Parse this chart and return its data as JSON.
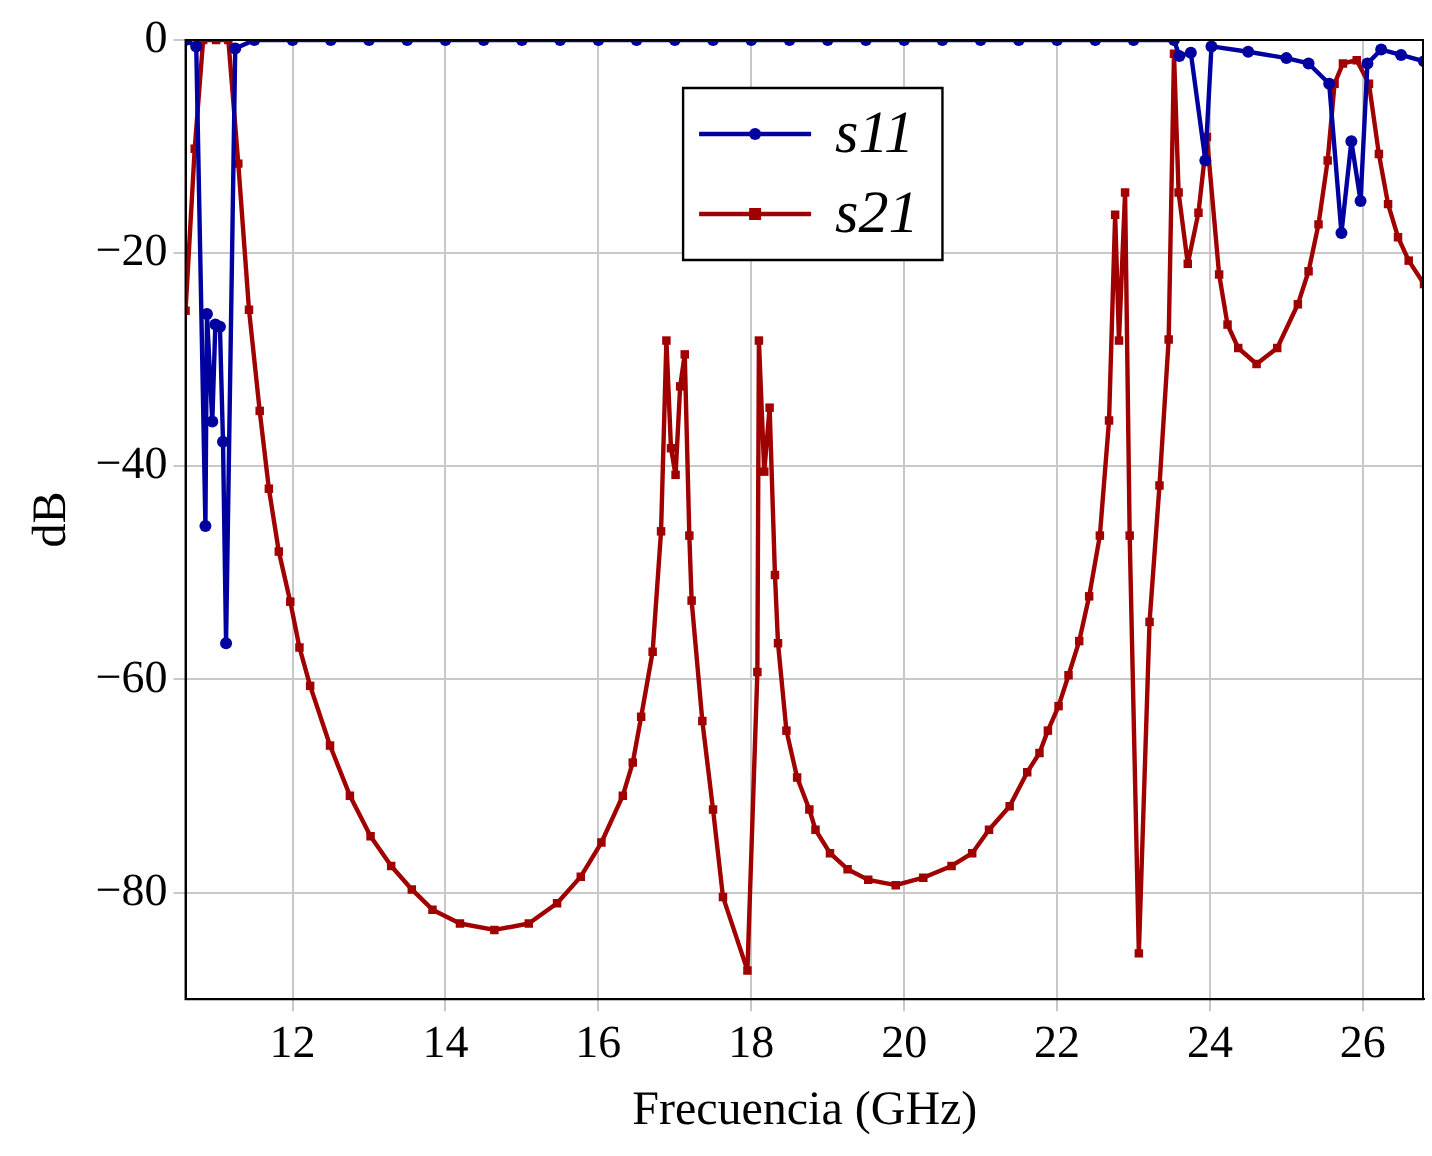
{
  "chart_data": {
    "type": "line",
    "xlabel": "Frecuencia (GHz)",
    "ylabel": "dB",
    "xlim": [
      10.6,
      26.8
    ],
    "ylim": [
      -90,
      0
    ],
    "xticks": [
      12,
      14,
      16,
      18,
      20,
      22,
      24,
      26
    ],
    "yticks": [
      {
        "value": -80,
        "label": "−80"
      },
      {
        "value": -60,
        "label": "−60"
      },
      {
        "value": -40,
        "label": "−40"
      },
      {
        "value": -20,
        "label": "−20"
      },
      0
    ],
    "grid": true,
    "legend": "top",
    "line_style": "solid",
    "series": [
      {
        "name": "s11",
        "color": "#0000a0",
        "marker": "circle",
        "x": [
          10.6,
          10.74,
          10.86,
          10.88,
          10.95,
          10.99,
          11.05,
          11.09,
          11.13,
          11.25,
          11.5,
          12,
          12.5,
          13,
          13.5,
          14,
          14.5,
          15,
          15.5,
          16,
          16.5,
          17,
          17.5,
          18,
          18.5,
          19,
          19.5,
          20,
          20.5,
          21,
          21.5,
          22,
          22.5,
          23,
          23.53,
          23.6,
          23.75,
          23.94,
          24.02,
          24.5,
          25,
          25.29,
          25.56,
          25.72,
          25.85,
          25.97,
          26.06,
          26.24,
          26.5,
          26.8
        ],
        "values": [
          0,
          -0.6,
          -45.6,
          -25.7,
          -35.8,
          -26.7,
          -26.9,
          -37.7,
          -56.6,
          -0.8,
          0,
          0,
          0,
          0,
          0,
          0,
          0,
          0,
          0,
          0,
          0,
          0,
          0,
          0,
          0,
          0,
          0,
          0,
          0,
          0,
          0,
          0,
          0,
          0,
          0,
          -1.5,
          -1.2,
          -11.3,
          -0.6,
          -1.1,
          -1.7,
          -2.2,
          -4.1,
          -18.1,
          -9.5,
          -15.1,
          -2.2,
          -0.9,
          -1.4,
          -2
        ]
      },
      {
        "name": "s21",
        "color": "#a00000",
        "marker": "square",
        "x": [
          10.6,
          10.72,
          10.83,
          11,
          11.16,
          11.29,
          11.43,
          11.57,
          11.69,
          11.82,
          11.97,
          12.09,
          12.23,
          12.49,
          12.75,
          13.02,
          13.29,
          13.56,
          13.83,
          14.19,
          14.64,
          15.09,
          15.46,
          15.77,
          16.04,
          16.32,
          16.45,
          16.56,
          16.71,
          16.82,
          16.89,
          16.95,
          17.01,
          17.07,
          17.13,
          17.19,
          17.22,
          17.36,
          17.5,
          17.63,
          17.95,
          18.08,
          18.1,
          18.17,
          18.24,
          18.31,
          18.35,
          18.46,
          18.6,
          18.76,
          18.84,
          19.03,
          19.26,
          19.53,
          19.89,
          20.25,
          20.62,
          20.89,
          21.11,
          21.38,
          21.61,
          21.77,
          21.88,
          22.02,
          22.15,
          22.29,
          22.42,
          22.56,
          22.68,
          22.76,
          22.81,
          22.89,
          22.95,
          23.07,
          23.21,
          23.34,
          23.46,
          23.53,
          23.59,
          23.71,
          23.85,
          23.96,
          24.12,
          24.23,
          24.37,
          24.61,
          24.88,
          25.15,
          25.29,
          25.42,
          25.54,
          25.63,
          25.74,
          25.92,
          26.08,
          26.21,
          26.33,
          26.46,
          26.6,
          26.8
        ],
        "values": [
          -25.4,
          -10.2,
          0,
          0,
          0,
          -11.6,
          -25.3,
          -34.8,
          -42.1,
          -48,
          -52.7,
          -57,
          -60.6,
          -66.2,
          -70.9,
          -74.7,
          -77.5,
          -79.7,
          -81.6,
          -82.9,
          -83.5,
          -82.9,
          -81,
          -78.5,
          -75.3,
          -70.9,
          -67.8,
          -63.5,
          -57.4,
          -46.1,
          -28.2,
          -38.3,
          -40.8,
          -32.5,
          -29.5,
          -46.5,
          -52.6,
          -63.9,
          -72.2,
          -80.4,
          -87.3,
          -59.3,
          -28.2,
          -40.5,
          -34.5,
          -50.2,
          -56.6,
          -64.8,
          -69.2,
          -72.2,
          -74.1,
          -76.3,
          -77.8,
          -78.8,
          -79.3,
          -78.6,
          -77.5,
          -76.3,
          -74.1,
          -71.9,
          -68.7,
          -66.9,
          -64.8,
          -62.5,
          -59.6,
          -56.4,
          -52.2,
          -46.5,
          -35.7,
          -16.4,
          -28.2,
          -14.3,
          -46.5,
          -85.7,
          -54.6,
          -41.8,
          -28.1,
          -1.3,
          -14.3,
          -21,
          -16.2,
          -9.1,
          -22,
          -26.7,
          -28.9,
          -30.4,
          -28.9,
          -24.8,
          -21.7,
          -17.3,
          -11.3,
          -4.1,
          -2.2,
          -1.9,
          -4.1,
          -10.7,
          -15.4,
          -18.5,
          -20.7,
          -22.9
        ]
      }
    ]
  }
}
